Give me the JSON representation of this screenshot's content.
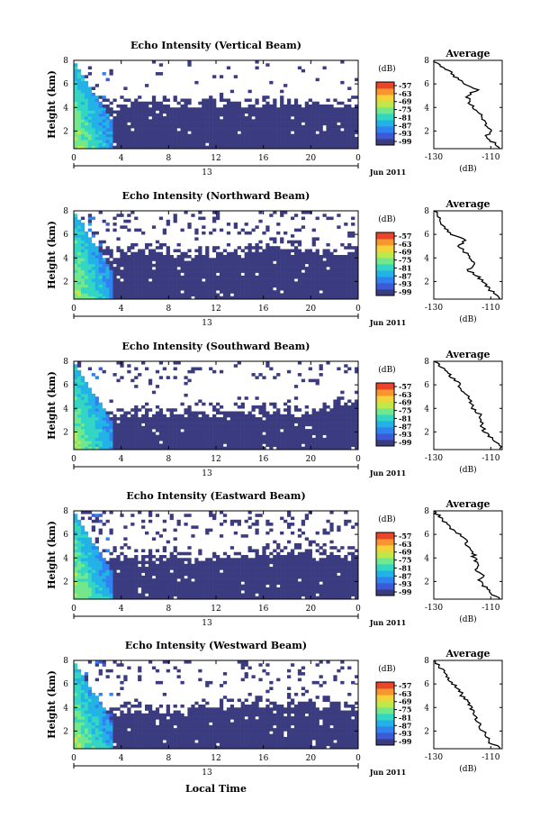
{
  "figure": {
    "common_xlabel": "Local Time",
    "date_label": "Jun 2011",
    "day_label": "13",
    "avg_title": "Average",
    "cbar_unit": "(dB)",
    "avg_xlabel": "(dB)",
    "colors": {
      "bins": [
        "#3b3b80",
        "#3c59d8",
        "#2f83f0",
        "#23b2e6",
        "#33d6c2",
        "#72e88a",
        "#bfe84a",
        "#f6d23a",
        "#f8952d",
        "#e8452b"
      ],
      "below_threshold": "#ffffff"
    }
  },
  "chart_data": [
    {
      "type": "heatmap",
      "title": "Echo Intensity (Vertical Beam)",
      "ylabel": "Height (km)",
      "x_ticks": [
        "0",
        "4",
        "8",
        "12",
        "16",
        "20",
        "0"
      ],
      "y_ticks": [
        "2",
        "4",
        "6",
        "8"
      ],
      "xlim": [
        0,
        24
      ],
      "ylim": [
        0.5,
        8.0
      ],
      "colorbar_ticks": [
        "-57",
        "-63",
        "-69",
        "-75",
        "-81",
        "-87",
        "-93",
        "-99"
      ],
      "colorbar_range_db": [
        -99,
        -57
      ],
      "profile": {
        "title": "Average",
        "x_ticks": [
          "-130",
          "-110"
        ],
        "y_ticks": [
          "2",
          "4",
          "6",
          "8"
        ],
        "xlim": [
          -130,
          -106
        ],
        "ylim": [
          0.5,
          8.0
        ],
        "height_km": [
          0.5,
          1.0,
          1.5,
          2.0,
          2.5,
          3.0,
          3.5,
          4.0,
          4.5,
          5.0,
          5.5,
          6.0,
          6.5,
          7.0,
          7.5,
          8.0
        ],
        "value_db": [
          -106,
          -109,
          -112,
          -110,
          -112,
          -113,
          -114,
          -116,
          -118,
          -118,
          -115,
          -119,
          -122,
          -124,
          -127,
          -130
        ]
      }
    },
    {
      "type": "heatmap",
      "title": "Echo Intensity (Northward Beam)",
      "ylabel": "Height (km)",
      "x_ticks": [
        "0",
        "4",
        "8",
        "12",
        "16",
        "20",
        "0"
      ],
      "y_ticks": [
        "2",
        "4",
        "6",
        "8"
      ],
      "xlim": [
        0,
        24
      ],
      "ylim": [
        0.5,
        8.0
      ],
      "colorbar_ticks": [
        "-57",
        "-63",
        "-69",
        "-75",
        "-81",
        "-87",
        "-93",
        "-99"
      ],
      "colorbar_range_db": [
        -99,
        -57
      ],
      "profile": {
        "title": "Average",
        "x_ticks": [
          "-130",
          "-110"
        ],
        "y_ticks": [
          "2",
          "4",
          "6",
          "8"
        ],
        "xlim": [
          -130,
          -106
        ],
        "ylim": [
          0.5,
          8.0
        ],
        "height_km": [
          0.5,
          1.0,
          1.5,
          2.0,
          2.5,
          3.0,
          3.5,
          4.0,
          4.5,
          5.0,
          5.5,
          6.0,
          6.5,
          7.0,
          7.5,
          8.0
        ],
        "value_db": [
          -106,
          -109,
          -111,
          -113,
          -115,
          -118,
          -116,
          -117,
          -119,
          -121,
          -119,
          -124,
          -126,
          -127,
          -128,
          -130
        ]
      }
    },
    {
      "type": "heatmap",
      "title": "Echo Intensity (Southward Beam)",
      "ylabel": "Height (km)",
      "x_ticks": [
        "0",
        "4",
        "8",
        "12",
        "16",
        "20",
        "0"
      ],
      "y_ticks": [
        "2",
        "4",
        "6",
        "8"
      ],
      "xlim": [
        0,
        24
      ],
      "ylim": [
        0.5,
        8.0
      ],
      "colorbar_ticks": [
        "-57",
        "-63",
        "-69",
        "-75",
        "-81",
        "-87",
        "-93",
        "-99"
      ],
      "colorbar_range_db": [
        -99,
        -57
      ],
      "profile": {
        "title": "Average",
        "x_ticks": [
          "-130",
          "-110"
        ],
        "y_ticks": [
          "2",
          "4",
          "6",
          "8"
        ],
        "xlim": [
          -130,
          -106
        ],
        "ylim": [
          0.5,
          8.0
        ],
        "height_km": [
          0.5,
          1.0,
          1.5,
          2.0,
          2.5,
          3.0,
          3.5,
          4.0,
          4.5,
          5.0,
          5.5,
          6.0,
          6.5,
          7.0,
          7.5,
          8.0
        ],
        "value_db": [
          -106,
          -108,
          -110,
          -112,
          -113,
          -113,
          -114,
          -116,
          -117,
          -118,
          -120,
          -121,
          -123,
          -125,
          -127,
          -130
        ]
      }
    },
    {
      "type": "heatmap",
      "title": "Echo Intensity (Eastward Beam)",
      "ylabel": "Height (km)",
      "x_ticks": [
        "0",
        "4",
        "8",
        "12",
        "16",
        "20",
        "0"
      ],
      "y_ticks": [
        "2",
        "4",
        "6",
        "8"
      ],
      "xlim": [
        0,
        24
      ],
      "ylim": [
        0.5,
        8.0
      ],
      "colorbar_ticks": [
        "-57",
        "-63",
        "-69",
        "-75",
        "-81",
        "-87",
        "-93",
        "-99"
      ],
      "colorbar_range_db": [
        -99,
        -57
      ],
      "profile": {
        "title": "Average",
        "x_ticks": [
          "-130",
          "-110"
        ],
        "y_ticks": [
          "2",
          "4",
          "6",
          "8"
        ],
        "xlim": [
          -130,
          -106
        ],
        "ylim": [
          0.5,
          8.0
        ],
        "height_km": [
          0.5,
          1.0,
          1.5,
          2.0,
          2.5,
          3.0,
          3.5,
          4.0,
          4.5,
          5.0,
          5.5,
          6.0,
          6.5,
          7.0,
          7.5,
          8.0
        ],
        "value_db": [
          -106,
          -110,
          -112,
          -114,
          -113,
          -115,
          -114,
          -116,
          -116,
          -118,
          -119,
          -121,
          -124,
          -126,
          -128,
          -130
        ]
      }
    },
    {
      "type": "heatmap",
      "title": "Echo Intensity (Westward Beam)",
      "ylabel": "Height (km)",
      "x_ticks": [
        "0",
        "4",
        "8",
        "12",
        "16",
        "20",
        "0"
      ],
      "y_ticks": [
        "2",
        "4",
        "6",
        "8"
      ],
      "xlim": [
        0,
        24
      ],
      "ylim": [
        0.5,
        8.0
      ],
      "colorbar_ticks": [
        "-57",
        "-63",
        "-69",
        "-75",
        "-81",
        "-87",
        "-93",
        "-99"
      ],
      "colorbar_range_db": [
        -99,
        -57
      ],
      "profile": {
        "title": "Average",
        "x_ticks": [
          "-130",
          "-110"
        ],
        "y_ticks": [
          "2",
          "4",
          "6",
          "8"
        ],
        "xlim": [
          -130,
          -106
        ],
        "ylim": [
          0.5,
          8.0
        ],
        "height_km": [
          0.5,
          1.0,
          1.5,
          2.0,
          2.5,
          3.0,
          3.5,
          4.0,
          4.5,
          5.0,
          5.5,
          6.0,
          6.5,
          7.0,
          7.5,
          8.0
        ],
        "value_db": [
          -106,
          -110,
          -111,
          -113,
          -114,
          -115,
          -116,
          -117,
          -118,
          -120,
          -121,
          -123,
          -125,
          -126,
          -128,
          -130
        ]
      }
    }
  ]
}
